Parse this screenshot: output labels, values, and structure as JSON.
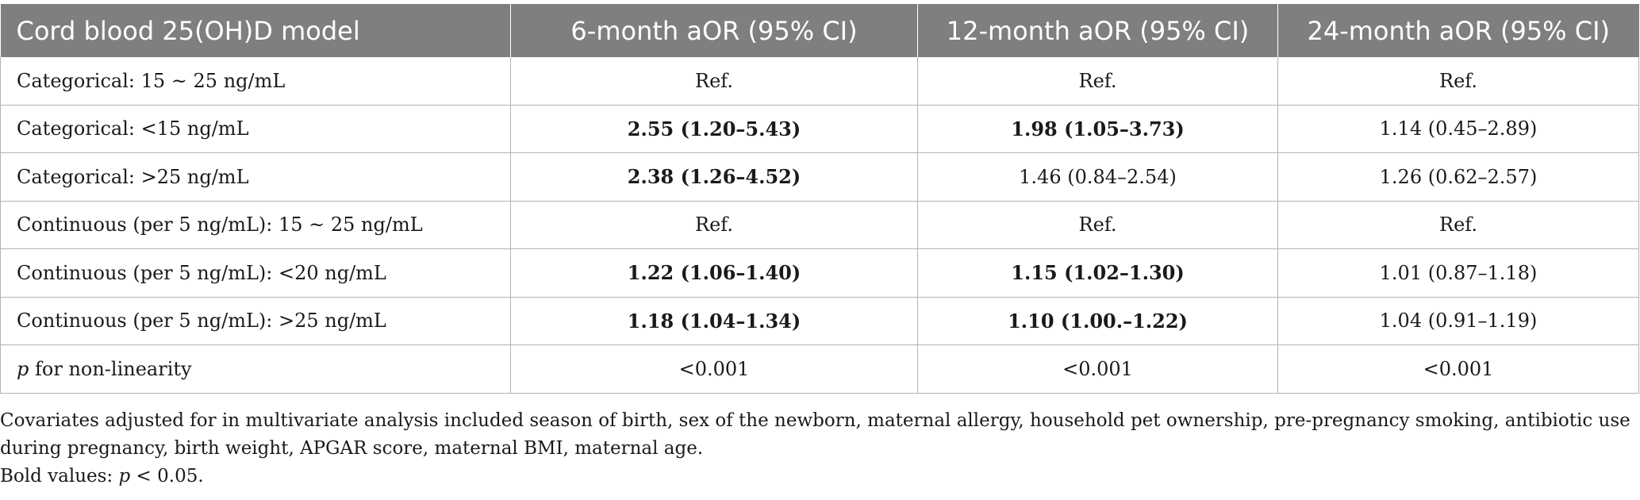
{
  "table": {
    "headers": [
      "Cord blood 25(OH)D model",
      "6-month aOR (95% CI)",
      "12-month aOR (95% CI)",
      "24-month aOR (95% CI)"
    ],
    "rows": [
      {
        "label": "Categorical: 15 ~ 25 ng/mL",
        "cells": [
          {
            "text": "Ref.",
            "bold": false
          },
          {
            "text": "Ref.",
            "bold": false
          },
          {
            "text": "Ref.",
            "bold": false
          }
        ]
      },
      {
        "label": "Categorical: <15 ng/mL",
        "cells": [
          {
            "text": "2.55 (1.20–5.43)",
            "bold": true
          },
          {
            "text": "1.98 (1.05–3.73)",
            "bold": true
          },
          {
            "text": "1.14 (0.45–2.89)",
            "bold": false
          }
        ]
      },
      {
        "label": "Categorical: >25 ng/mL",
        "cells": [
          {
            "text": "2.38 (1.26–4.52)",
            "bold": true
          },
          {
            "text": "1.46 (0.84–2.54)",
            "bold": false
          },
          {
            "text": "1.26 (0.62–2.57)",
            "bold": false
          }
        ]
      },
      {
        "label": "Continuous (per 5 ng/mL): 15 ~ 25 ng/mL",
        "cells": [
          {
            "text": "Ref.",
            "bold": false
          },
          {
            "text": "Ref.",
            "bold": false
          },
          {
            "text": "Ref.",
            "bold": false
          }
        ]
      },
      {
        "label": "Continuous (per 5 ng/mL): <20 ng/mL",
        "cells": [
          {
            "text": "1.22 (1.06–1.40)",
            "bold": true
          },
          {
            "text": "1.15 (1.02–1.30)",
            "bold": true
          },
          {
            "text": "1.01 (0.87–1.18)",
            "bold": false
          }
        ]
      },
      {
        "label": "Continuous (per 5 ng/mL): >25 ng/mL",
        "cells": [
          {
            "text": "1.18 (1.04–1.34)",
            "bold": true
          },
          {
            "text": "1.10 (1.00.–1.22)",
            "bold": true
          },
          {
            "text": "1.04 (0.91–1.19)",
            "bold": false
          }
        ]
      },
      {
        "label_italic": "p",
        "label_rest": " for non-linearity",
        "cells": [
          {
            "text": "<0.001",
            "bold": false
          },
          {
            "text": "<0.001",
            "bold": false
          },
          {
            "text": "<0.001",
            "bold": false
          }
        ]
      }
    ]
  },
  "footnotes": {
    "covariates": "Covariates adjusted for in multivariate analysis included season of birth, sex of the newborn, maternal allergy, household pet ownership, pre-pregnancy smoking, antibiotic use during pregnancy, birth weight, APGAR score, maternal BMI, maternal age.",
    "bold_prefix": "Bold values: ",
    "bold_italic": "p",
    "bold_suffix": " < 0.05."
  },
  "colors": {
    "header_bg": "#7f7f7f",
    "header_text": "#ffffff",
    "grid": "#b3b3b3"
  }
}
